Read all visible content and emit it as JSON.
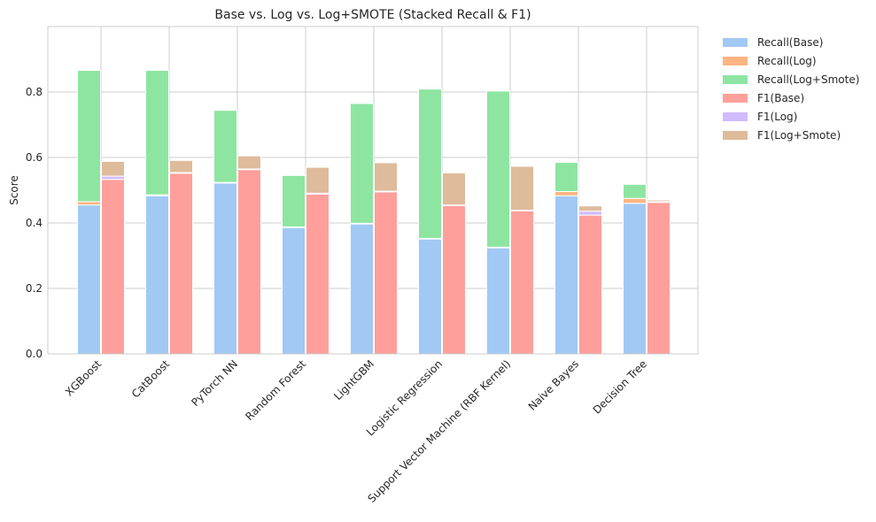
{
  "chart_data": {
    "type": "bar",
    "stacked": true,
    "title": "Base vs. Log vs. Log+SMOTE (Stacked Recall & F1)",
    "xlabel": "",
    "ylabel": "Score",
    "ylim": [
      0,
      1.0
    ],
    "yticks": [
      0.0,
      0.2,
      0.4,
      0.6,
      0.8
    ],
    "ytick_labels": [
      "0.0",
      "0.2",
      "0.4",
      "0.6",
      "0.8"
    ],
    "grid": true,
    "legend_position": "outside-right",
    "categories": [
      "XGBoost",
      "CatBoost",
      "PyTorch NN",
      "Random Forest",
      "LightGBM",
      "Logistic Regression",
      "Support Vector Machine (RBF Kernel)",
      "Naive Bayes",
      "Decision Tree"
    ],
    "groups": [
      {
        "name": "Recall",
        "series": [
          {
            "name": "Recall(Base)",
            "color": "#a1c9f4",
            "values": [
              0.455,
              0.483,
              0.522,
              0.386,
              0.397,
              0.351,
              0.324,
              0.483,
              0.46
            ]
          },
          {
            "name": "Recall(Log)",
            "color": "#ffb482",
            "values": [
              0.01,
              0.003,
              0.002,
              0.002,
              0.002,
              0.002,
              0.002,
              0.013,
              0.015
            ]
          },
          {
            "name": "Recall(Log+Smote)",
            "color": "#8de5a1",
            "values": [
              0.401,
              0.38,
              0.22,
              0.157,
              0.366,
              0.456,
              0.477,
              0.089,
              0.043
            ]
          }
        ]
      },
      {
        "name": "F1",
        "series": [
          {
            "name": "F1(Base)",
            "color": "#ff9f9b",
            "values": [
              0.533,
              0.552,
              0.563,
              0.488,
              0.495,
              0.453,
              0.437,
              0.424,
              0.463
            ]
          },
          {
            "name": "F1(Log)",
            "color": "#d0bbff",
            "values": [
              0.01,
              0.002,
              0.002,
              0.003,
              0.002,
              0.002,
              0.002,
              0.012,
              0.002
            ]
          },
          {
            "name": "F1(Log+Smote)",
            "color": "#debb9b",
            "values": [
              0.045,
              0.037,
              0.04,
              0.079,
              0.087,
              0.098,
              0.134,
              0.016,
              0.005
            ]
          }
        ]
      }
    ]
  }
}
